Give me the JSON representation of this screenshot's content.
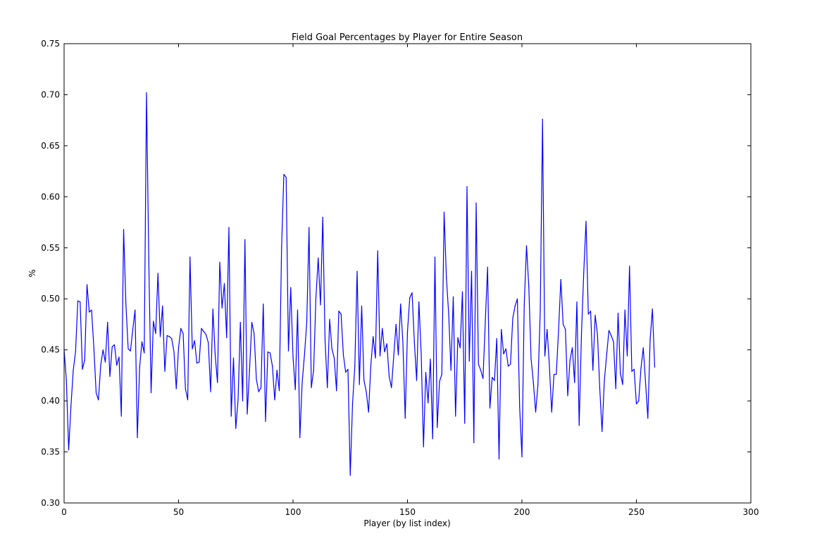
{
  "chart_data": {
    "type": "line",
    "title": "Field Goal Percentages by Player for Entire Season",
    "xlabel": "Player (by list index)",
    "ylabel": "%",
    "xlim": [
      0,
      300
    ],
    "ylim": [
      0.3,
      0.75
    ],
    "xticks": [
      0,
      50,
      100,
      150,
      200,
      250,
      300
    ],
    "xtick_labels": [
      "0",
      "50",
      "100",
      "150",
      "200",
      "250",
      "300"
    ],
    "yticks": [
      0.3,
      0.35,
      0.4,
      0.45,
      0.5,
      0.55,
      0.6,
      0.65,
      0.7,
      0.75
    ],
    "ytick_labels": [
      "0.30",
      "0.35",
      "0.40",
      "0.45",
      "0.50",
      "0.55",
      "0.60",
      "0.65",
      "0.70",
      "0.75"
    ],
    "grid": false,
    "legend": false,
    "line_color": "#0000ff",
    "series": [
      {
        "values": [
          0.45,
          0.42,
          0.352,
          0.395,
          0.43,
          0.448,
          0.498,
          0.497,
          0.431,
          0.44,
          0.514,
          0.487,
          0.489,
          0.452,
          0.408,
          0.401,
          0.435,
          0.45,
          0.438,
          0.477,
          0.424,
          0.453,
          0.455,
          0.435,
          0.443,
          0.385,
          0.568,
          0.495,
          0.451,
          0.449,
          0.47,
          0.489,
          0.364,
          0.433,
          0.458,
          0.447,
          0.702,
          0.537,
          0.408,
          0.478,
          0.466,
          0.525,
          0.463,
          0.493,
          0.429,
          0.464,
          0.463,
          0.461,
          0.448,
          0.412,
          0.452,
          0.471,
          0.466,
          0.412,
          0.401,
          0.541,
          0.451,
          0.459,
          0.437,
          0.438,
          0.471,
          0.468,
          0.465,
          0.457,
          0.409,
          0.49,
          0.445,
          0.418,
          0.536,
          0.491,
          0.515,
          0.462,
          0.57,
          0.385,
          0.442,
          0.373,
          0.401,
          0.477,
          0.4,
          0.558,
          0.387,
          0.43,
          0.477,
          0.466,
          0.421,
          0.409,
          0.413,
          0.495,
          0.38,
          0.448,
          0.447,
          0.434,
          0.401,
          0.43,
          0.41,
          0.55,
          0.622,
          0.619,
          0.449,
          0.511,
          0.443,
          0.411,
          0.489,
          0.364,
          0.418,
          0.445,
          0.477,
          0.57,
          0.413,
          0.43,
          0.501,
          0.54,
          0.494,
          0.58,
          0.459,
          0.413,
          0.48,
          0.451,
          0.442,
          0.41,
          0.488,
          0.485,
          0.445,
          0.428,
          0.431,
          0.327,
          0.397,
          0.434,
          0.527,
          0.416,
          0.493,
          0.42,
          0.409,
          0.389,
          0.435,
          0.463,
          0.442,
          0.547,
          0.444,
          0.471,
          0.448,
          0.456,
          0.424,
          0.413,
          0.444,
          0.475,
          0.445,
          0.495,
          0.457,
          0.383,
          0.468,
          0.501,
          0.506,
          0.458,
          0.42,
          0.497,
          0.446,
          0.355,
          0.428,
          0.398,
          0.441,
          0.363,
          0.541,
          0.374,
          0.419,
          0.426,
          0.585,
          0.521,
          0.485,
          0.43,
          0.502,
          0.385,
          0.462,
          0.452,
          0.507,
          0.378,
          0.61,
          0.439,
          0.527,
          0.359,
          0.594,
          0.436,
          0.43,
          0.422,
          0.478,
          0.531,
          0.393,
          0.423,
          0.42,
          0.461,
          0.343,
          0.47,
          0.446,
          0.451,
          0.434,
          0.436,
          0.481,
          0.493,
          0.5,
          0.394,
          0.345,
          0.494,
          0.552,
          0.512,
          0.441,
          0.418,
          0.389,
          0.416,
          0.488,
          0.676,
          0.444,
          0.47,
          0.434,
          0.389,
          0.426,
          0.426,
          0.469,
          0.519,
          0.475,
          0.47,
          0.405,
          0.44,
          0.452,
          0.418,
          0.497,
          0.376,
          0.465,
          0.526,
          0.576,
          0.485,
          0.488,
          0.43,
          0.484,
          0.465,
          0.412,
          0.37,
          0.42,
          0.445,
          0.469,
          0.464,
          0.458,
          0.412,
          0.486,
          0.427,
          0.416,
          0.489,
          0.444,
          0.532,
          0.429,
          0.431,
          0.397,
          0.4,
          0.432,
          0.452,
          0.418,
          0.383,
          0.46,
          0.49,
          0.433
        ]
      }
    ]
  }
}
